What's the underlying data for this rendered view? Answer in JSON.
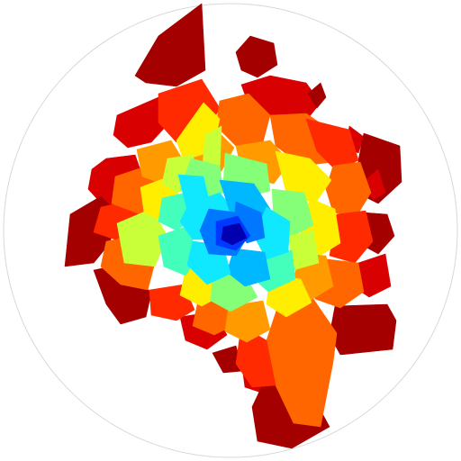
{
  "image": {
    "background": "#ffffff",
    "boundary_circle": {
      "stroke": "#d8d8d8"
    },
    "colormap": "jet",
    "palette": {
      "dark_red": "#a40000",
      "red": "#d80000",
      "red_orange": "#ff2a00",
      "orange": "#ff6600",
      "amber": "#ff9a00",
      "yellow": "#ffee00",
      "lime": "#c8ff38",
      "light_green": "#86ff78",
      "aqua_green": "#44ffbb",
      "cyan": "#10e8ff",
      "sky": "#00b8ff",
      "blue": "#0077ff",
      "deep_blue": "#0038ff",
      "navy": "#0000b0"
    }
  }
}
